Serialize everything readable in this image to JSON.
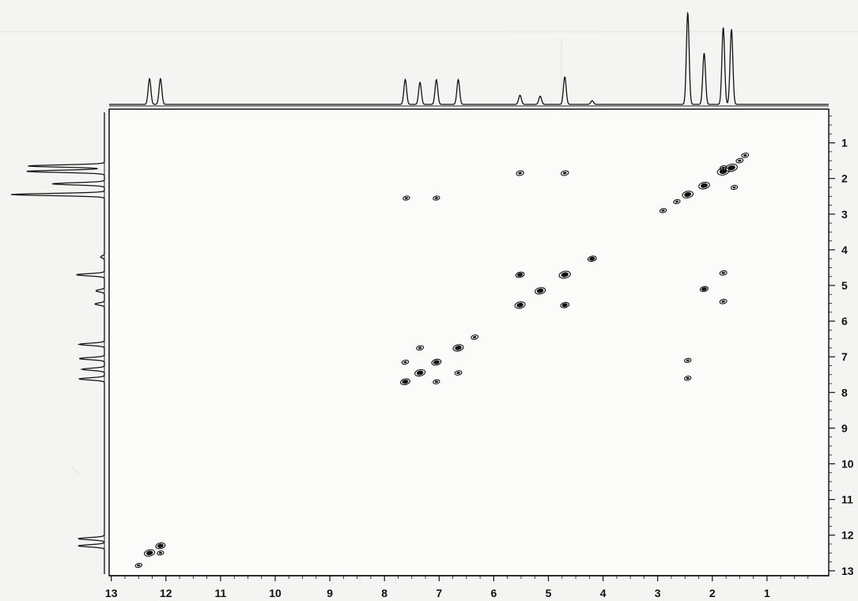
{
  "chart_data": {
    "type": "scatter",
    "subtype": "2D NMR COSY contour plot with 1D projections",
    "title": "",
    "xlabel": "",
    "ylabel": "",
    "xlim": [
      13,
      0
    ],
    "ylim": [
      13,
      1
    ],
    "x_axis_reversed": true,
    "x_ticks": [
      "13",
      "12",
      "11",
      "10",
      "9",
      "8",
      "7",
      "6",
      "5",
      "4",
      "3",
      "2",
      "1"
    ],
    "y_ticks": [
      "1",
      "2",
      "3",
      "4",
      "5",
      "6",
      "7",
      "8",
      "9",
      "10",
      "11",
      "12",
      "13"
    ],
    "grid": false,
    "legend": "none",
    "colors": {
      "ink": "#111111",
      "background": "#f4f4f2"
    },
    "projection_peaks": [
      {
        "ppm": 12.3,
        "intensity": 0.28
      },
      {
        "ppm": 12.1,
        "intensity": 0.28
      },
      {
        "ppm": 7.62,
        "intensity": 0.27
      },
      {
        "ppm": 7.35,
        "intensity": 0.24
      },
      {
        "ppm": 7.05,
        "intensity": 0.27
      },
      {
        "ppm": 6.65,
        "intensity": 0.27
      },
      {
        "ppm": 5.52,
        "intensity": 0.1
      },
      {
        "ppm": 5.15,
        "intensity": 0.09
      },
      {
        "ppm": 4.7,
        "intensity": 0.3
      },
      {
        "ppm": 4.2,
        "intensity": 0.04
      },
      {
        "ppm": 2.45,
        "intensity": 1.0
      },
      {
        "ppm": 2.15,
        "intensity": 0.56
      },
      {
        "ppm": 1.8,
        "intensity": 0.84
      },
      {
        "ppm": 1.65,
        "intensity": 0.82
      }
    ],
    "diagonal_peaks": [
      {
        "x": 12.3,
        "y": 12.5,
        "size": 1.2
      },
      {
        "x": 12.1,
        "y": 12.3,
        "size": 1.0
      },
      {
        "x": 7.62,
        "y": 7.7,
        "size": 1.0
      },
      {
        "x": 7.35,
        "y": 7.45,
        "size": 1.2
      },
      {
        "x": 7.05,
        "y": 7.15,
        "size": 1.0
      },
      {
        "x": 6.65,
        "y": 6.75,
        "size": 1.2
      },
      {
        "x": 5.52,
        "y": 5.55,
        "size": 1.2
      },
      {
        "x": 5.15,
        "y": 5.15,
        "size": 1.2
      },
      {
        "x": 4.7,
        "y": 4.7,
        "size": 1.4
      },
      {
        "x": 4.2,
        "y": 4.25,
        "size": 0.8
      },
      {
        "x": 2.45,
        "y": 2.45,
        "size": 1.3
      },
      {
        "x": 2.15,
        "y": 2.2,
        "size": 1.3
      },
      {
        "x": 1.8,
        "y": 1.8,
        "size": 1.5
      },
      {
        "x": 1.65,
        "y": 1.7,
        "size": 1.5
      }
    ],
    "cross_peaks": [
      {
        "x": 12.5,
        "y": 12.85,
        "size": 0.4
      },
      {
        "x": 12.1,
        "y": 12.5,
        "size": 0.4
      },
      {
        "x": 7.62,
        "y": 7.15,
        "size": 0.4
      },
      {
        "x": 7.35,
        "y": 6.75,
        "size": 0.5
      },
      {
        "x": 7.05,
        "y": 7.7,
        "size": 0.4
      },
      {
        "x": 6.65,
        "y": 7.45,
        "size": 0.5
      },
      {
        "x": 6.35,
        "y": 6.45,
        "size": 0.5
      },
      {
        "x": 7.6,
        "y": 2.55,
        "size": 0.4
      },
      {
        "x": 7.05,
        "y": 2.55,
        "size": 0.4
      },
      {
        "x": 5.52,
        "y": 1.85,
        "size": 0.6
      },
      {
        "x": 4.7,
        "y": 1.85,
        "size": 0.6
      },
      {
        "x": 5.52,
        "y": 4.7,
        "size": 0.8
      },
      {
        "x": 4.7,
        "y": 5.55,
        "size": 0.8
      },
      {
        "x": 2.15,
        "y": 5.1,
        "size": 0.7
      },
      {
        "x": 1.8,
        "y": 4.65,
        "size": 0.5
      },
      {
        "x": 1.8,
        "y": 5.45,
        "size": 0.5
      },
      {
        "x": 2.45,
        "y": 7.1,
        "size": 0.4
      },
      {
        "x": 2.45,
        "y": 7.6,
        "size": 0.4
      },
      {
        "x": 2.9,
        "y": 2.9,
        "size": 0.4
      },
      {
        "x": 2.65,
        "y": 2.65,
        "size": 0.4
      },
      {
        "x": 1.6,
        "y": 2.25,
        "size": 0.4
      },
      {
        "x": 1.8,
        "y": 1.7,
        "size": 0.4
      },
      {
        "x": 1.5,
        "y": 1.5,
        "size": 0.5
      },
      {
        "x": 1.4,
        "y": 1.35,
        "size": 0.5
      }
    ]
  }
}
